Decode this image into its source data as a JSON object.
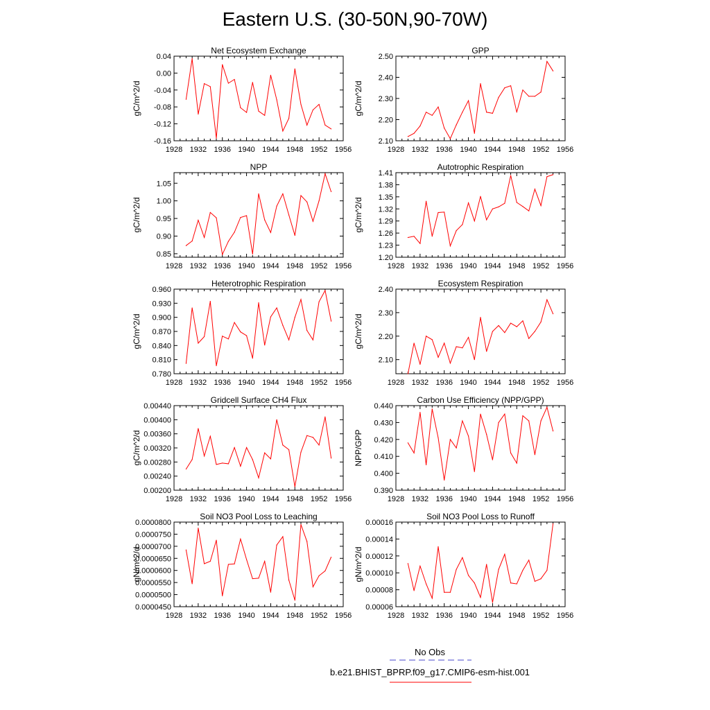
{
  "figure": {
    "title": "Eastern U.S. (30-50N,90-70W)",
    "legend": [
      {
        "label": "No Obs",
        "color": "#4444cc",
        "style": "dashed"
      },
      {
        "label": "b.e21.BHIST_BPRP.f09_g17.CMIP6-esm-hist.001",
        "color": "#ff0000",
        "style": "solid"
      }
    ],
    "line_color": "#ff0000"
  },
  "chart_data": [
    {
      "type": "line",
      "title": "Net Ecosystem Exchange",
      "ylabel": "gC/m^2/d",
      "xlabel": "",
      "xlim": [
        1928,
        1956
      ],
      "xticks": [
        "1928",
        "1932",
        "1936",
        "1940",
        "1944",
        "1948",
        "1952",
        "1956"
      ],
      "ylim": [
        -0.16,
        0.04
      ],
      "yticks": [
        "-0.16",
        "-0.12",
        "-0.08",
        "-0.04",
        "0.00",
        "0.04"
      ],
      "series": [
        {
          "x": [
            1930,
            1931,
            1932,
            1933,
            1934,
            1935,
            1936,
            1937,
            1938,
            1939,
            1940,
            1941,
            1942,
            1943,
            1944,
            1945,
            1946,
            1947,
            1948,
            1949,
            1950,
            1951,
            1952,
            1953,
            1954
          ],
          "values": [
            -0.062,
            0.034,
            -0.097,
            -0.025,
            -0.032,
            -0.154,
            0.02,
            -0.024,
            -0.015,
            -0.082,
            -0.093,
            -0.022,
            -0.09,
            -0.1,
            -0.005,
            -0.063,
            -0.137,
            -0.107,
            0.01,
            -0.074,
            -0.123,
            -0.087,
            -0.074,
            -0.123,
            -0.132
          ]
        }
      ]
    },
    {
      "type": "line",
      "title": "GPP",
      "ylabel": "gC/m^2/d",
      "xlabel": "",
      "xlim": [
        1928,
        1956
      ],
      "xticks": [
        "1928",
        "1932",
        "1936",
        "1940",
        "1944",
        "1948",
        "1952",
        "1956"
      ],
      "ylim": [
        2.1,
        2.5
      ],
      "yticks": [
        "2.10",
        "2.20",
        "2.30",
        "2.40",
        "2.50"
      ],
      "series": [
        {
          "x": [
            1930,
            1931,
            1932,
            1933,
            1934,
            1935,
            1936,
            1937,
            1938,
            1939,
            1940,
            1941,
            1942,
            1943,
            1944,
            1945,
            1946,
            1947,
            1948,
            1949,
            1950,
            1951,
            1952,
            1953,
            1954
          ],
          "values": [
            2.12,
            2.135,
            2.17,
            2.235,
            2.22,
            2.26,
            2.16,
            2.11,
            2.175,
            2.235,
            2.29,
            2.135,
            2.37,
            2.235,
            2.23,
            2.305,
            2.35,
            2.36,
            2.235,
            2.34,
            2.31,
            2.31,
            2.33,
            2.475,
            2.43
          ]
        }
      ]
    },
    {
      "type": "line",
      "title": "NPP",
      "ylabel": "gC/m^2/d",
      "xlabel": "",
      "xlim": [
        1928,
        1956
      ],
      "xticks": [
        "1928",
        "1932",
        "1936",
        "1940",
        "1944",
        "1948",
        "1952",
        "1956"
      ],
      "ylim": [
        0.84,
        1.08
      ],
      "yticks": [
        "0.85",
        "0.90",
        "0.95",
        "1.00",
        "1.05"
      ],
      "series": [
        {
          "x": [
            1930,
            1931,
            1932,
            1933,
            1934,
            1935,
            1936,
            1937,
            1938,
            1939,
            1940,
            1941,
            1942,
            1943,
            1944,
            1945,
            1946,
            1947,
            1948,
            1949,
            1950,
            1951,
            1952,
            1953,
            1954
          ],
          "values": [
            0.873,
            0.886,
            0.945,
            0.896,
            0.967,
            0.952,
            0.848,
            0.885,
            0.911,
            0.953,
            0.958,
            0.849,
            1.02,
            0.946,
            0.91,
            0.985,
            1.02,
            0.96,
            0.902,
            1.015,
            0.997,
            0.942,
            1.0,
            1.077,
            1.026
          ]
        }
      ]
    },
    {
      "type": "line",
      "title": "Autotrophic Respiration",
      "ylabel": "gC/m^2/d",
      "xlabel": "",
      "xlim": [
        1928,
        1956
      ],
      "xticks": [
        "1928",
        "1932",
        "1936",
        "1940",
        "1944",
        "1948",
        "1952",
        "1956"
      ],
      "ylim": [
        1.2,
        1.41
      ],
      "yticks": [
        "1.20",
        "1.23",
        "1.26",
        "1.29",
        "1.32",
        "1.35",
        "1.38",
        "1.41"
      ],
      "series": [
        {
          "x": [
            1930,
            1931,
            1932,
            1933,
            1934,
            1935,
            1936,
            1937,
            1938,
            1939,
            1940,
            1941,
            1942,
            1943,
            1944,
            1945,
            1946,
            1947,
            1948,
            1949,
            1950,
            1951,
            1952,
            1953,
            1954
          ],
          "values": [
            1.249,
            1.252,
            1.234,
            1.339,
            1.252,
            1.311,
            1.312,
            1.228,
            1.266,
            1.281,
            1.335,
            1.29,
            1.351,
            1.293,
            1.32,
            1.325,
            1.334,
            1.403,
            1.336,
            1.326,
            1.315,
            1.369,
            1.328,
            1.4,
            1.405
          ]
        }
      ]
    },
    {
      "type": "line",
      "title": "Heterotrophic Respiration",
      "ylabel": "gC/m^2/d",
      "xlabel": "",
      "xlim": [
        1928,
        1956
      ],
      "xticks": [
        "1928",
        "1932",
        "1936",
        "1940",
        "1944",
        "1948",
        "1952",
        "1956"
      ],
      "ylim": [
        0.78,
        0.96
      ],
      "yticks": [
        "0.780",
        "0.810",
        "0.840",
        "0.870",
        "0.900",
        "0.930",
        "0.960"
      ],
      "series": [
        {
          "x": [
            1930,
            1931,
            1932,
            1933,
            1934,
            1935,
            1936,
            1937,
            1938,
            1939,
            1940,
            1941,
            1942,
            1943,
            1944,
            1945,
            1946,
            1947,
            1948,
            1949,
            1950,
            1951,
            1952,
            1953,
            1954
          ],
          "values": [
            0.802,
            0.92,
            0.845,
            0.859,
            0.934,
            0.797,
            0.86,
            0.854,
            0.889,
            0.869,
            0.861,
            0.813,
            0.931,
            0.841,
            0.901,
            0.92,
            0.883,
            0.852,
            0.9,
            0.938,
            0.872,
            0.852,
            0.933,
            0.957,
            0.892
          ]
        }
      ]
    },
    {
      "type": "line",
      "title": "Ecosystem Respiration",
      "ylabel": "gC/m^2/d",
      "xlabel": "",
      "xlim": [
        1928,
        1956
      ],
      "xticks": [
        "1928",
        "1932",
        "1936",
        "1940",
        "1944",
        "1948",
        "1952",
        "1956"
      ],
      "ylim": [
        2.04,
        2.4
      ],
      "yticks": [
        "2.10",
        "2.20",
        "2.30",
        "2.40"
      ],
      "series": [
        {
          "x": [
            1930,
            1931,
            1932,
            1933,
            1934,
            1935,
            1936,
            1937,
            1938,
            1939,
            1940,
            1941,
            1942,
            1943,
            1944,
            1945,
            1946,
            1947,
            1948,
            1949,
            1950,
            1951,
            1952,
            1953,
            1954
          ],
          "values": [
            2.04,
            2.17,
            2.08,
            2.2,
            2.185,
            2.11,
            2.17,
            2.085,
            2.155,
            2.15,
            2.195,
            2.1,
            2.28,
            2.135,
            2.22,
            2.245,
            2.215,
            2.255,
            2.24,
            2.265,
            2.19,
            2.22,
            2.26,
            2.355,
            2.295
          ]
        }
      ]
    },
    {
      "type": "line",
      "title": "Gridcell Surface CH4 Flux",
      "ylabel": "gC/m^2/d",
      "xlabel": "",
      "xlim": [
        1928,
        1956
      ],
      "xticks": [
        "1928",
        "1932",
        "1936",
        "1940",
        "1944",
        "1948",
        "1952",
        "1956"
      ],
      "ylim": [
        0.002,
        0.0044
      ],
      "yticks": [
        "0.00200",
        "0.00240",
        "0.00280",
        "0.00320",
        "0.00360",
        "0.00400",
        "0.00440"
      ],
      "series": [
        {
          "x": [
            1930,
            1931,
            1932,
            1933,
            1934,
            1935,
            1936,
            1937,
            1938,
            1939,
            1940,
            1941,
            1942,
            1943,
            1944,
            1945,
            1946,
            1947,
            1948,
            1949,
            1950,
            1951,
            1952,
            1953,
            1954
          ],
          "values": [
            0.0026,
            0.00287,
            0.00375,
            0.00297,
            0.00353,
            0.00273,
            0.00277,
            0.00275,
            0.00321,
            0.00268,
            0.00321,
            0.00287,
            0.00235,
            0.00306,
            0.00289,
            0.004,
            0.00328,
            0.00315,
            0.0021,
            0.00308,
            0.00355,
            0.0035,
            0.00328,
            0.00408,
            0.00291
          ]
        }
      ]
    },
    {
      "type": "line",
      "title": "Carbon Use Efficiency (NPP/GPP)",
      "ylabel": "NPP/GPP",
      "xlabel": "",
      "xlim": [
        1928,
        1956
      ],
      "xticks": [
        "1928",
        "1932",
        "1936",
        "1940",
        "1944",
        "1948",
        "1952",
        "1956"
      ],
      "ylim": [
        0.39,
        0.44
      ],
      "yticks": [
        "0.390",
        "0.400",
        "0.410",
        "0.420",
        "0.430",
        "0.440"
      ],
      "series": [
        {
          "x": [
            1930,
            1931,
            1932,
            1933,
            1934,
            1935,
            1936,
            1937,
            1938,
            1939,
            1940,
            1941,
            1942,
            1943,
            1944,
            1945,
            1946,
            1947,
            1948,
            1949,
            1950,
            1951,
            1952,
            1953,
            1954
          ],
          "values": [
            0.418,
            0.412,
            0.436,
            0.405,
            0.438,
            0.421,
            0.396,
            0.42,
            0.415,
            0.431,
            0.422,
            0.401,
            0.435,
            0.423,
            0.408,
            0.43,
            0.435,
            0.412,
            0.406,
            0.434,
            0.431,
            0.411,
            0.431,
            0.439,
            0.425
          ]
        }
      ]
    },
    {
      "type": "line",
      "title": "Soil NO3 Pool Loss to Leaching",
      "ylabel": "gN/m^2/d",
      "xlabel": "",
      "xlim": [
        1928,
        1956
      ],
      "xticks": [
        "1928",
        "1932",
        "1936",
        "1940",
        "1944",
        "1948",
        "1952",
        "1956"
      ],
      "ylim": [
        4.5e-05,
        8e-05
      ],
      "yticks": [
        "0.0000450",
        "0.0000500",
        "0.0000550",
        "0.0000600",
        "0.0000650",
        "0.0000700",
        "0.0000750",
        "0.0000800"
      ],
      "series": [
        {
          "x": [
            1930,
            1931,
            1932,
            1933,
            1934,
            1935,
            1936,
            1937,
            1938,
            1939,
            1940,
            1941,
            1942,
            1943,
            1944,
            1945,
            1946,
            1947,
            1948,
            1949,
            1950,
            1951,
            1952,
            1953,
            1954
          ],
          "values": [
            6.85e-05,
            5.45e-05,
            7.75e-05,
            6.28e-05,
            6.38e-05,
            7.25e-05,
            4.95e-05,
            6.25e-05,
            6.27e-05,
            7.3e-05,
            6.45e-05,
            5.66e-05,
            5.68e-05,
            6.38e-05,
            5.1e-05,
            7.05e-05,
            7.4e-05,
            5.6e-05,
            4.77e-05,
            7.9e-05,
            7.2e-05,
            5.32e-05,
            5.78e-05,
            5.98e-05,
            6.55e-05
          ]
        }
      ]
    },
    {
      "type": "line",
      "title": "Soil NO3 Pool Loss to Runoff",
      "ylabel": "gN/m^2/d",
      "xlabel": "",
      "xlim": [
        1928,
        1956
      ],
      "xticks": [
        "1928",
        "1932",
        "1936",
        "1940",
        "1944",
        "1948",
        "1952",
        "1956"
      ],
      "ylim": [
        6e-05,
        0.00016
      ],
      "yticks": [
        "0.00006",
        "0.00008",
        "0.00010",
        "0.00012",
        "0.00014",
        "0.00016"
      ],
      "series": [
        {
          "x": [
            1930,
            1931,
            1932,
            1933,
            1934,
            1935,
            1936,
            1937,
            1938,
            1939,
            1940,
            1941,
            1942,
            1943,
            1944,
            1945,
            1946,
            1947,
            1948,
            1949,
            1950,
            1951,
            1952,
            1953,
            1954
          ],
          "values": [
            0.000111,
            7.9e-05,
            0.000108,
            8.7e-05,
            7e-05,
            0.000131,
            7.7e-05,
            7.7e-05,
            0.000104,
            0.000118,
            9.7e-05,
            8.8e-05,
            7.1e-05,
            0.00011,
            6.5e-05,
            0.000104,
            0.000122,
            8.8e-05,
            8.7e-05,
            0.000103,
            0.000115,
            9e-05,
            9.3e-05,
            0.000103,
            0.000158
          ]
        }
      ]
    }
  ]
}
